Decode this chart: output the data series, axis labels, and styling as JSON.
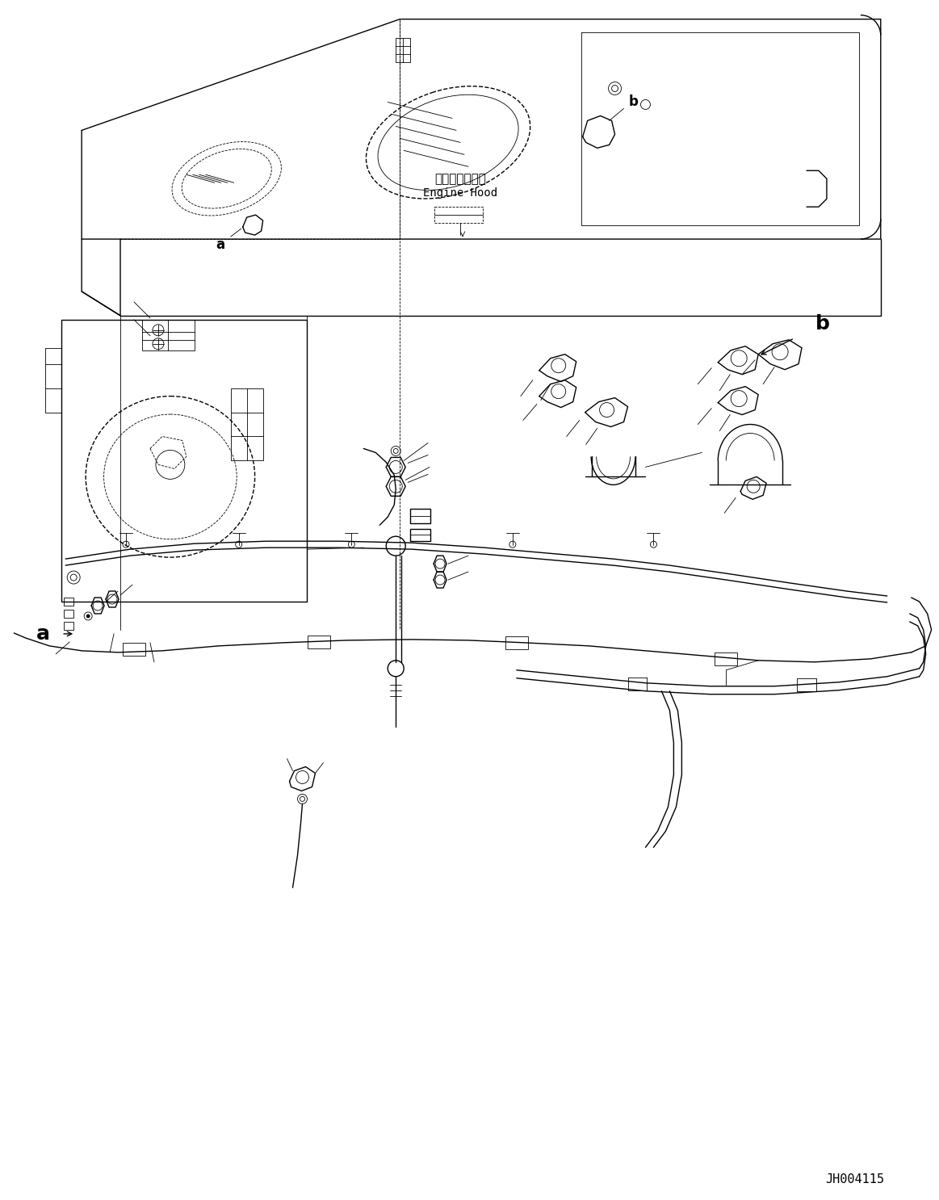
{
  "background_color": "#ffffff",
  "line_color": "#000000",
  "fig_width": 11.63,
  "fig_height": 14.86,
  "dpi": 100,
  "label_a": "a",
  "label_b": "b",
  "engine_hood_jp": "エンジンフード",
  "engine_hood_en": "Engine Hood",
  "part_number": "JH004115",
  "lw_main": 1.0,
  "lw_thin": 0.6,
  "lw_thick": 1.5
}
